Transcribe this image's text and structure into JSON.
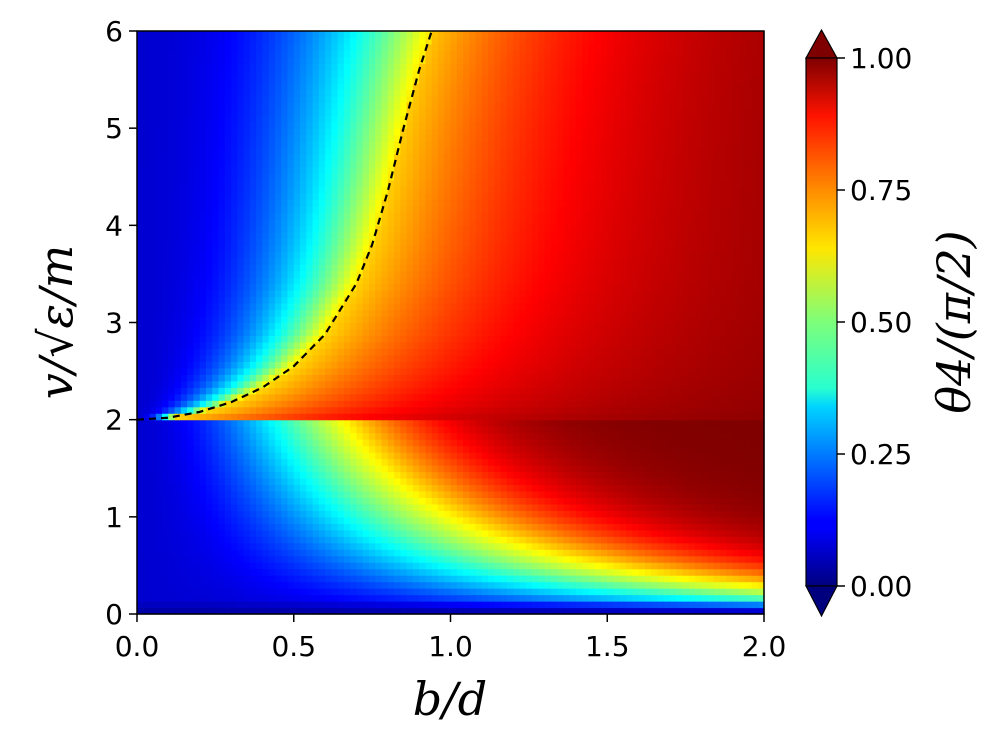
{
  "chart_data": {
    "type": "heatmap",
    "xlabel": "b/d",
    "ylabel": "v/√ε/m",
    "colorbar_label": "θ4/(π/2)",
    "xlim": [
      0,
      2
    ],
    "ylim": [
      0,
      6
    ],
    "x_ticks": [
      "0.0",
      "0.5",
      "1.0",
      "1.5",
      "2.0"
    ],
    "y_ticks": [
      "0",
      "1",
      "2",
      "3",
      "4",
      "5",
      "6"
    ],
    "colorbar_range": [
      0,
      1
    ],
    "colorbar_ticks": [
      "0.00",
      "0.25",
      "0.50",
      "0.75",
      "1.00"
    ],
    "colormap": "jet",
    "colorbar_extend": "both",
    "grid": false,
    "boundary_curve": {
      "style": "dashed",
      "color": "#000000",
      "points": [
        [
          0.0,
          2.0
        ],
        [
          0.1,
          2.02
        ],
        [
          0.2,
          2.08
        ],
        [
          0.3,
          2.18
        ],
        [
          0.4,
          2.33
        ],
        [
          0.5,
          2.55
        ],
        [
          0.6,
          2.88
        ],
        [
          0.7,
          3.4
        ],
        [
          0.75,
          3.8
        ],
        [
          0.8,
          4.35
        ],
        [
          0.85,
          5.0
        ],
        [
          0.9,
          5.6
        ],
        [
          0.94,
          6.0
        ]
      ]
    }
  }
}
